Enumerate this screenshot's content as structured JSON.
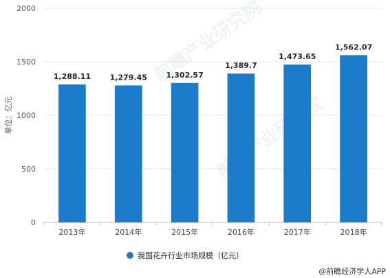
{
  "chart_data": {
    "type": "bar",
    "categories": [
      "2013年",
      "2014年",
      "2015年",
      "2016年",
      "2017年",
      "2018年"
    ],
    "values": [
      1288.11,
      1279.45,
      1302.57,
      1389.7,
      1473.65,
      1562.07
    ],
    "value_labels": [
      "1,288.11",
      "1,279.45",
      "1,302.57",
      "1,389.7",
      "1,473.65",
      "1,562.07"
    ],
    "yticks": [
      "0",
      "500",
      "1000",
      "1500",
      "2000"
    ],
    "ylim": [
      0,
      2000
    ],
    "ylabel": "单位：亿元",
    "legend": {
      "label": "我国花卉行业市场规模（亿元）",
      "position": "bottom"
    },
    "grid": true,
    "bar_color": "#1a7cca"
  },
  "watermark": "前瞻产业研究院",
  "footer": {
    "credit": "@前瞻经济学人APP"
  }
}
